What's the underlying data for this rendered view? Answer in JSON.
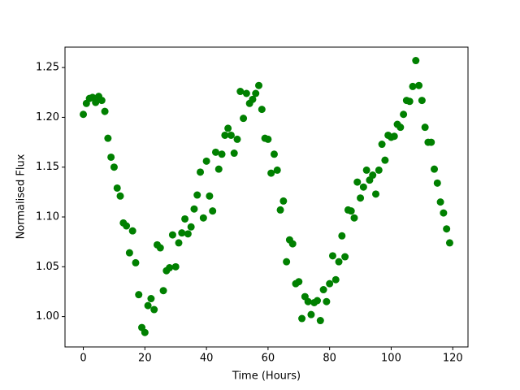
{
  "chart_data": {
    "type": "scatter",
    "x_label": "Time (Hours)",
    "y_label": "Normalised Flux",
    "color": "#008000",
    "x": [
      0,
      1,
      2,
      3,
      4,
      5,
      6,
      7,
      8,
      9,
      10,
      11,
      12,
      13,
      14,
      15,
      16,
      17,
      18,
      19,
      20,
      21,
      22,
      23,
      24,
      25,
      26,
      27,
      28,
      29,
      30,
      31,
      32,
      33,
      34,
      35,
      36,
      37,
      38,
      39,
      40,
      41,
      42,
      43,
      44,
      45,
      46,
      47,
      48,
      49,
      50,
      51,
      52,
      53,
      54,
      55,
      56,
      57,
      58,
      59,
      60,
      61,
      62,
      63,
      64,
      65,
      66,
      67,
      68,
      69,
      70,
      71,
      72,
      73,
      74,
      75,
      76,
      77,
      78,
      79,
      80,
      81,
      82,
      83,
      84,
      85,
      86,
      87,
      88,
      89,
      90,
      91,
      92,
      93,
      94,
      95,
      96,
      97,
      98,
      99,
      100,
      101,
      102,
      103,
      104,
      105,
      106,
      107,
      108,
      109,
      110,
      111,
      112,
      113,
      114,
      115,
      116,
      117,
      118,
      119
    ],
    "values": [
      1.203,
      1.214,
      1.219,
      1.22,
      1.215,
      1.221,
      1.217,
      1.206,
      1.179,
      1.16,
      1.15,
      1.129,
      1.121,
      1.094,
      1.091,
      1.064,
      1.086,
      1.054,
      1.022,
      0.989,
      0.984,
      1.011,
      1.018,
      1.007,
      1.072,
      1.069,
      1.026,
      1.046,
      1.049,
      1.082,
      1.05,
      1.074,
      1.084,
      1.098,
      1.083,
      1.09,
      1.108,
      1.122,
      1.145,
      1.099,
      1.156,
      1.121,
      1.106,
      1.165,
      1.148,
      1.163,
      1.182,
      1.189,
      1.182,
      1.164,
      1.178,
      1.226,
      1.199,
      1.224,
      1.214,
      1.218,
      1.224,
      1.232,
      1.208,
      1.179,
      1.178,
      1.144,
      1.163,
      1.147,
      1.107,
      1.116,
      1.055,
      1.077,
      1.073,
      1.033,
      1.035,
      0.998,
      1.02,
      1.015,
      1.002,
      1.014,
      1.016,
      0.996,
      1.027,
      1.015,
      1.033,
      1.061,
      1.037,
      1.055,
      1.081,
      1.06,
      1.107,
      1.106,
      1.099,
      1.135,
      1.119,
      1.13,
      1.147,
      1.137,
      1.142,
      1.123,
      1.147,
      1.173,
      1.157,
      1.182,
      1.18,
      1.181,
      1.193,
      1.19,
      1.203,
      1.217,
      1.216,
      1.231,
      1.257,
      1.232,
      1.217,
      1.19,
      1.175,
      1.175,
      1.148,
      1.134,
      1.115,
      1.104,
      1.088,
      1.074
    ],
    "xlim": [
      -5.95,
      124.95
    ],
    "ylim": [
      0.9695,
      1.2705
    ],
    "xticks": [
      0,
      20,
      40,
      60,
      80,
      100,
      120
    ],
    "yticks": [
      {
        "value": 1.0,
        "label": "1.00"
      },
      1.05,
      {
        "value": 1.1,
        "label": "1.10"
      },
      1.15,
      {
        "value": 1.2,
        "label": "1.20"
      },
      1.25
    ]
  }
}
